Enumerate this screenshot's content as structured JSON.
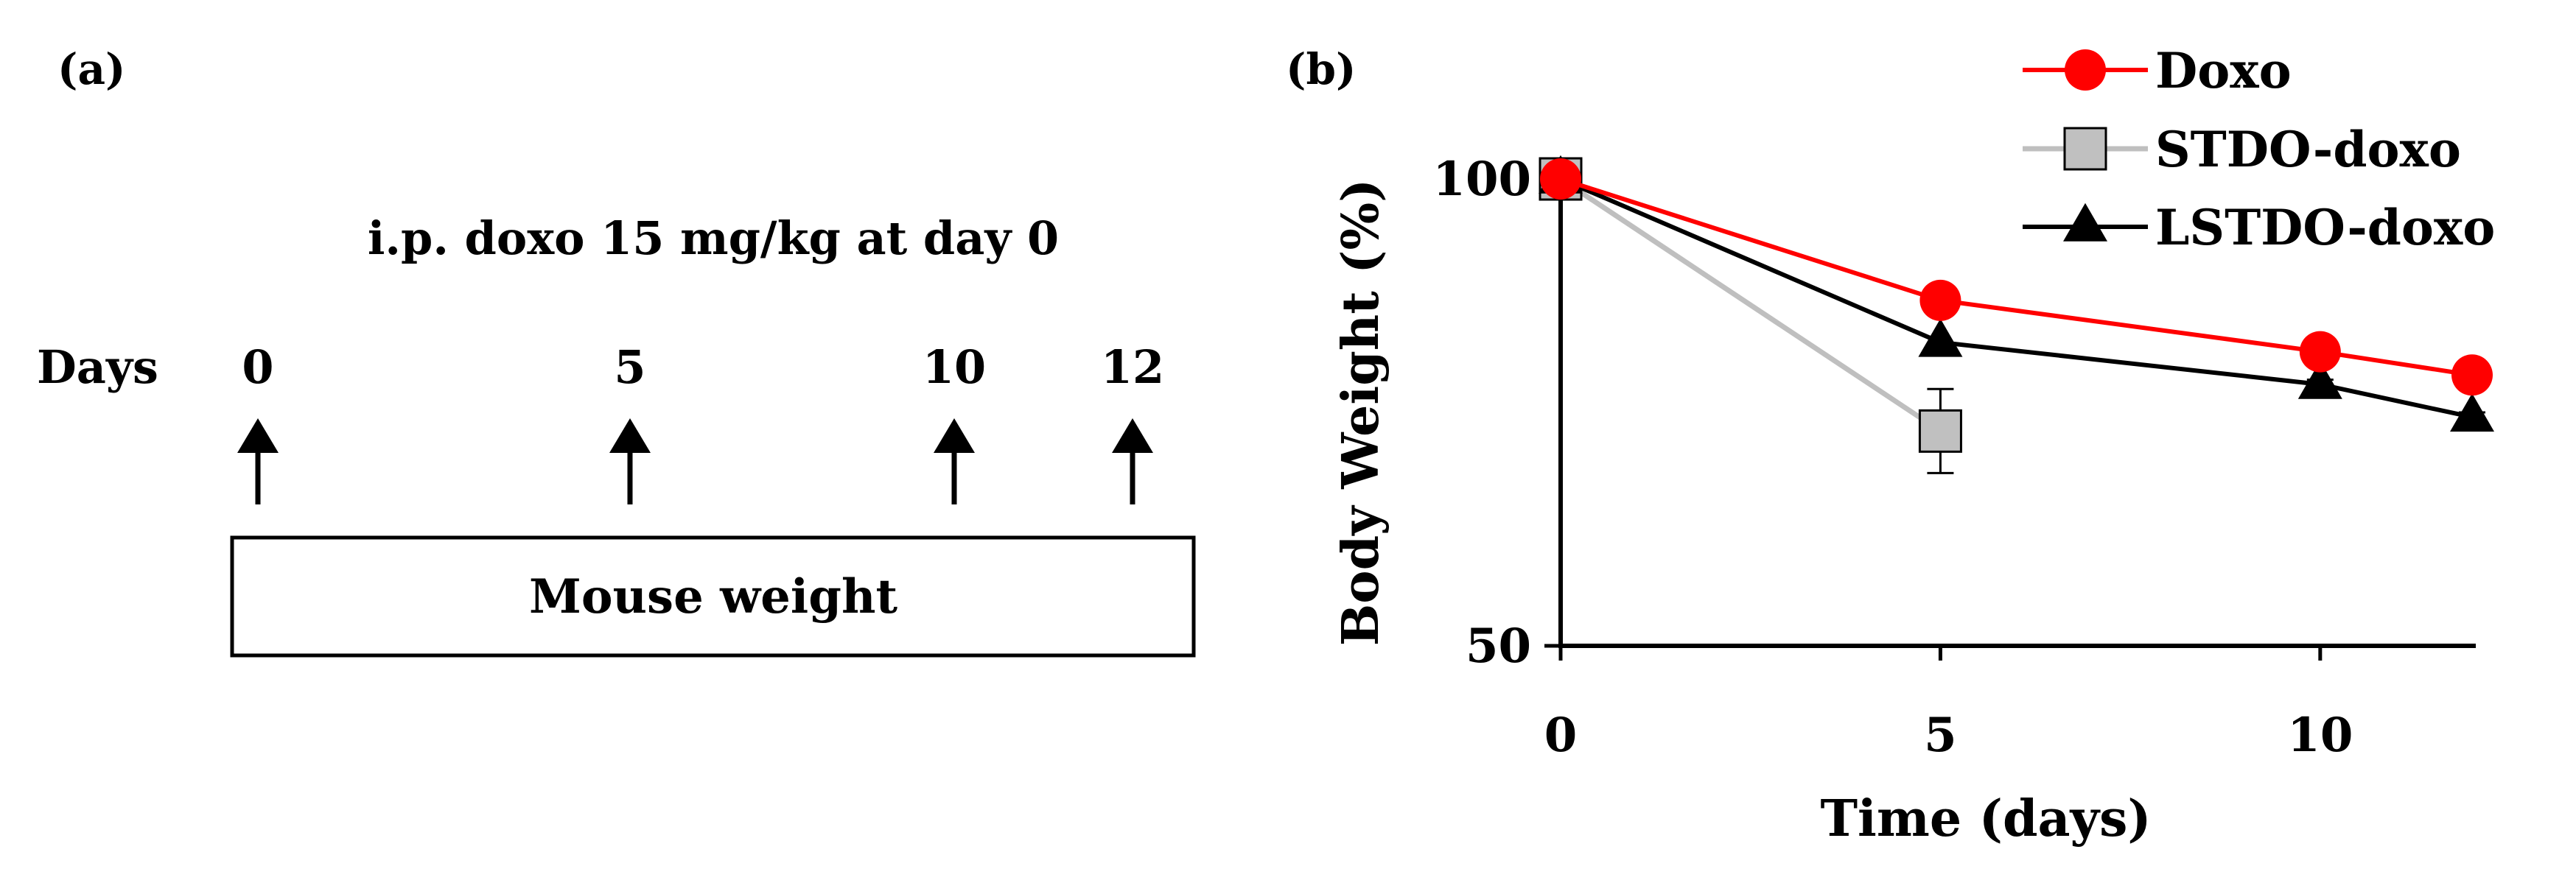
{
  "panel_a": {
    "label": "(a)",
    "treatment_text": "i.p. doxo 15 mg/kg at day 0",
    "days_label": "Days",
    "days": [
      "0",
      "5",
      "10",
      "12"
    ],
    "box_label": "Mouse weight"
  },
  "panel_b": {
    "label": "(b)"
  },
  "chart_data": {
    "type": "line",
    "xlabel": "Time (days)",
    "ylabel": "Body Weight (%)",
    "xlim": [
      0,
      12
    ],
    "ylim": [
      50,
      100
    ],
    "xticks": [
      0,
      5,
      10
    ],
    "yticks": [
      50,
      100
    ],
    "grid": false,
    "legend_position": "top-right",
    "series": [
      {
        "name": "Doxo",
        "color": "#ff0000",
        "marker": "circle",
        "x": [
          0,
          5,
          10,
          12
        ],
        "y": [
          100,
          87,
          81.5,
          79
        ],
        "err": [
          0,
          0,
          0.5,
          1.5
        ]
      },
      {
        "name": "STDO-doxo",
        "color": "#bfbfbf",
        "marker": "square",
        "marker_fill": "#c0c0c0",
        "x": [
          0,
          5
        ],
        "y": [
          100,
          73
        ],
        "err": [
          0,
          4.5
        ]
      },
      {
        "name": "LSTDO-doxo",
        "color": "#000000",
        "marker": "triangle",
        "x": [
          0,
          5,
          10,
          12
        ],
        "y": [
          100,
          82.5,
          78,
          74.5
        ],
        "err": [
          0,
          0,
          0.5,
          0.5
        ]
      }
    ]
  }
}
